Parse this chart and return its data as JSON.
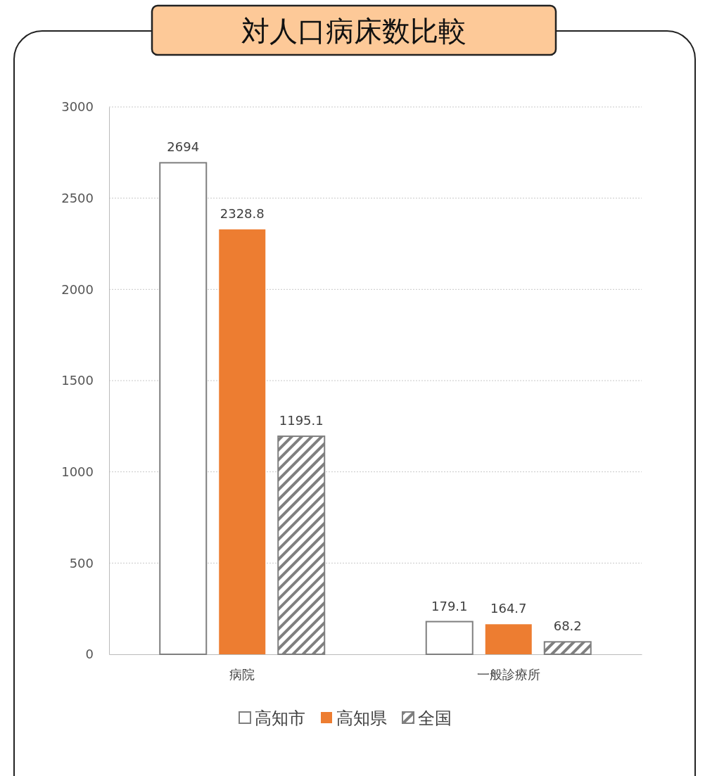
{
  "chart_data": {
    "type": "bar",
    "title": "対人口病床数比較",
    "categories": [
      "病院",
      "一般診療所"
    ],
    "series": [
      {
        "name": "高知市",
        "color": "#ffffff",
        "values": [
          2694,
          179.1
        ]
      },
      {
        "name": "高知県",
        "color": "#ed7d31",
        "values": [
          2328.8,
          164.7
        ]
      },
      {
        "name": "全国",
        "color": "#7f7f7f",
        "values": [
          1195.1,
          68.2
        ]
      }
    ],
    "ylim": [
      0,
      3000
    ],
    "yticks": [
      0,
      500,
      1000,
      1500,
      2000,
      2500,
      3000
    ],
    "grid": "y",
    "data_labels": true,
    "legend": "bottom"
  }
}
